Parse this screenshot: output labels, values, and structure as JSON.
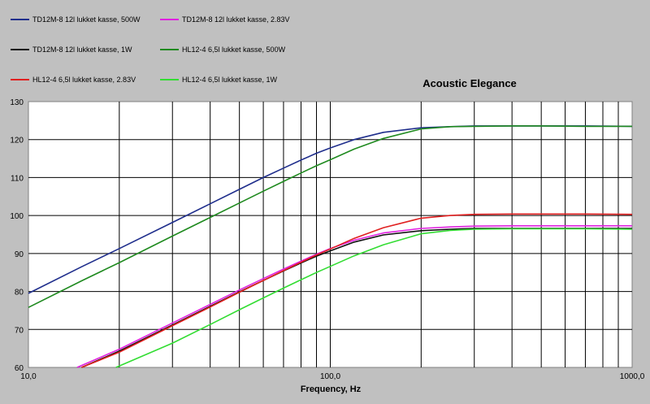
{
  "chart_data": {
    "type": "line",
    "title": "Acoustic Elegance",
    "xlabel": "Frequency, Hz",
    "ylabel": "",
    "x_scale": "log",
    "xlim": [
      10,
      1000
    ],
    "ylim": [
      60,
      130
    ],
    "grid": true,
    "legend_position": "top-left",
    "x_tick_labels": [
      "10,0",
      "100,0",
      "1000,0"
    ],
    "y_tick_labels": [
      "60",
      "70",
      "80",
      "90",
      "100",
      "110",
      "120",
      "130"
    ],
    "background_color": "#c0c0c0",
    "plot_background_color": "#ffffff",
    "series": [
      {
        "name": "TD12M-8 12l lukket kasse, 500W",
        "color": "#1f2e8c",
        "x": [
          10,
          15,
          20,
          30,
          40,
          50,
          60,
          70,
          80,
          90,
          100,
          120,
          150,
          200,
          250,
          300,
          400,
          500,
          700,
          1000
        ],
        "y": [
          79.5,
          86.5,
          91.3,
          98.2,
          103.1,
          106.9,
          110.0,
          112.5,
          114.6,
          116.4,
          117.8,
          120.0,
          121.9,
          123.1,
          123.4,
          123.6,
          123.6,
          123.6,
          123.6,
          123.5
        ]
      },
      {
        "name": "TD12M-8 12l lukket kasse, 2.83V",
        "color": "#e020e0",
        "x": [
          14.5,
          20,
          30,
          40,
          50,
          60,
          70,
          80,
          90,
          100,
          120,
          150,
          200,
          250,
          300,
          400,
          500,
          700,
          1000
        ],
        "y": [
          60,
          64.8,
          71.7,
          76.6,
          80.4,
          83.4,
          85.9,
          88.0,
          89.8,
          91.3,
          93.5,
          95.4,
          96.6,
          97.0,
          97.2,
          97.3,
          97.3,
          97.3,
          97.3
        ]
      },
      {
        "name": "TD12M-8 12l lukket kasse, 1W",
        "color": "#111111",
        "x": [
          15,
          20,
          30,
          40,
          50,
          60,
          70,
          80,
          90,
          100,
          120,
          150,
          200,
          250,
          300,
          400,
          500,
          700,
          1000
        ],
        "y": [
          60,
          64.3,
          71.2,
          76.1,
          79.9,
          82.9,
          85.4,
          87.5,
          89.3,
          90.7,
          93.0,
          94.9,
          96.0,
          96.4,
          96.6,
          96.6,
          96.6,
          96.6,
          96.6
        ]
      },
      {
        "name": "HL12-4 6,5l lukket kasse, 500W",
        "color": "#1f8a1f",
        "x": [
          10,
          15,
          20,
          30,
          40,
          50,
          60,
          70,
          80,
          90,
          100,
          120,
          150,
          200,
          250,
          300,
          400,
          500,
          700,
          1000
        ],
        "y": [
          75.8,
          82.8,
          87.6,
          94.6,
          99.5,
          103.3,
          106.4,
          109.0,
          111.2,
          113.1,
          114.7,
          117.5,
          120.3,
          122.8,
          123.4,
          123.5,
          123.6,
          123.6,
          123.5,
          123.5
        ]
      },
      {
        "name": "HL12-4 6,5l lukket kasse, 2.83V",
        "color": "#e02020",
        "x": [
          15,
          20,
          30,
          40,
          50,
          60,
          70,
          80,
          90,
          100,
          120,
          150,
          200,
          250,
          300,
          400,
          500,
          700,
          1000
        ],
        "y": [
          60,
          64.0,
          71.0,
          75.9,
          79.8,
          82.9,
          85.5,
          87.7,
          89.6,
          91.2,
          94.0,
          96.8,
          99.3,
          100.0,
          100.3,
          100.4,
          100.4,
          100.4,
          100.3
        ]
      },
      {
        "name": "HL12-4 6,5l lukket kasse, 1W",
        "color": "#33dd33",
        "x": [
          19.5,
          30,
          40,
          50,
          60,
          70,
          80,
          90,
          100,
          120,
          150,
          200,
          250,
          300,
          400,
          500,
          700,
          1000
        ],
        "y": [
          60,
          66.4,
          71.3,
          75.2,
          78.3,
          80.9,
          83.1,
          85.0,
          86.6,
          89.4,
          92.3,
          95.2,
          96.1,
          96.4,
          96.5,
          96.5,
          96.5,
          96.4
        ]
      }
    ]
  }
}
